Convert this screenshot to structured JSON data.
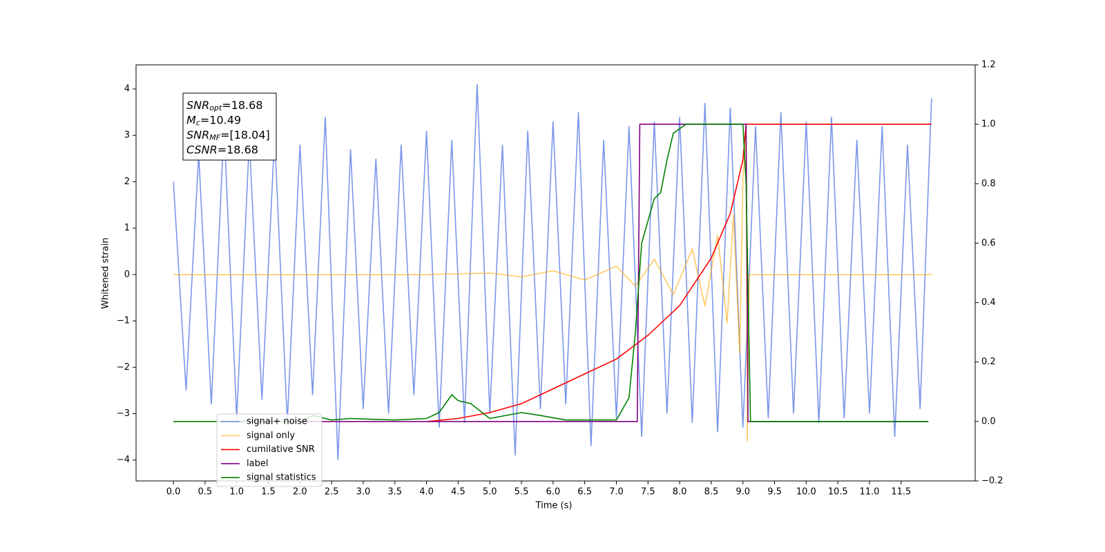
{
  "chart_data": {
    "type": "line",
    "xlabel": "Time (s)",
    "ylabel": "Whitened strain",
    "xlim": [
      -0.59,
      12.67
    ],
    "ylim": [
      -4.45,
      4.52
    ],
    "y2lim": [
      -0.2,
      1.2
    ],
    "xticks": [
      {
        "value": 0,
        "label": "0.0"
      },
      {
        "value": 0.5,
        "label": "0.5"
      },
      {
        "value": 1,
        "label": "1.0"
      },
      {
        "value": 1.5,
        "label": "1.5"
      },
      {
        "value": 2,
        "label": "2.0"
      },
      {
        "value": 2.5,
        "label": "2.5"
      },
      {
        "value": 3,
        "label": "3.0"
      },
      {
        "value": 3.5,
        "label": "3.5"
      },
      {
        "value": 4,
        "label": "4.0"
      },
      {
        "value": 4.5,
        "label": "4.5"
      },
      {
        "value": 5,
        "label": "5.0"
      },
      {
        "value": 5.5,
        "label": "5.5"
      },
      {
        "value": 6,
        "label": "6.0"
      },
      {
        "value": 6.5,
        "label": "6.5"
      },
      {
        "value": 7,
        "label": "7.0"
      },
      {
        "value": 7.5,
        "label": "7.5"
      },
      {
        "value": 8,
        "label": "8.0"
      },
      {
        "value": 8.5,
        "label": "8.5"
      },
      {
        "value": 9,
        "label": "9.0"
      },
      {
        "value": 9.5,
        "label": "9.5"
      },
      {
        "value": 10,
        "label": "10.0"
      },
      {
        "value": 10.5,
        "label": "10.5"
      },
      {
        "value": 11,
        "label": "11.0"
      },
      {
        "value": 11.5,
        "label": "11.5"
      }
    ],
    "yticks": [
      {
        "value": -4,
        "label": "−4"
      },
      {
        "value": -3,
        "label": "−3"
      },
      {
        "value": -2,
        "label": "−2"
      },
      {
        "value": -1,
        "label": "−1"
      },
      0,
      1,
      2,
      3,
      4
    ],
    "y2ticks": [
      {
        "value": -0.2,
        "label": "−0.2"
      },
      {
        "value": 0,
        "label": "0.0"
      },
      {
        "value": 0.2,
        "label": "0.2"
      },
      {
        "value": 0.4,
        "label": "0.4"
      },
      {
        "value": 0.6,
        "label": "0.6"
      },
      {
        "value": 0.8,
        "label": "0.8"
      },
      {
        "value": 1,
        "label": "1.0"
      },
      {
        "value": 1.2,
        "label": "1.2"
      }
    ],
    "annotation": [
      {
        "base": "SNR",
        "sub": "opt",
        "text": "=18.68"
      },
      {
        "base": "M",
        "sub": "c",
        "text": "=10.49"
      },
      {
        "base": "SNR",
        "sub": "MF",
        "text": "=[18.04]"
      },
      {
        "base": "CSNR",
        "sub": "",
        "text": "=18.68"
      }
    ],
    "series": [
      {
        "name": "signal+ noise",
        "color": "#4169e1",
        "alpha": 0.7,
        "x": [
          0,
          0.2,
          0.4,
          0.6,
          0.8,
          1,
          1.2,
          1.4,
          1.6,
          1.8,
          2,
          2.2,
          2.4,
          2.6,
          2.8,
          3,
          3.2,
          3.4,
          3.6,
          3.8,
          4,
          4.2,
          4.4,
          4.6,
          4.8,
          5,
          5.2,
          5.4,
          5.6,
          5.8,
          6,
          6.2,
          6.4,
          6.6,
          6.8,
          7,
          7.2,
          7.4,
          7.6,
          7.8,
          8,
          8.2,
          8.4,
          8.6,
          8.8,
          9,
          9.2,
          9.4,
          9.6,
          9.8,
          10,
          10.2,
          10.4,
          10.6,
          10.8,
          11,
          11.2,
          11.4,
          11.6,
          11.8,
          11.98
        ],
        "values": [
          2.0,
          -2.5,
          2.6,
          -2.8,
          3.2,
          -3.1,
          2.9,
          -2.7,
          3.0,
          -3.2,
          2.8,
          -2.6,
          3.4,
          -4.0,
          2.7,
          -2.9,
          2.5,
          -3.0,
          2.8,
          -2.6,
          3.1,
          -3.3,
          2.9,
          -3.2,
          4.1,
          -3.0,
          2.8,
          -3.9,
          3.1,
          -2.9,
          3.3,
          -2.8,
          3.5,
          -3.7,
          2.9,
          -3.1,
          3.2,
          -3.5,
          3.3,
          -3.0,
          3.4,
          -3.2,
          3.7,
          -3.4,
          3.6,
          -3.3,
          3.2,
          -3.1,
          3.5,
          -3.0,
          3.3,
          -3.2,
          3.4,
          -3.1,
          2.9,
          -3.0,
          3.2,
          -3.5,
          2.8,
          -2.9,
          3.8
        ]
      },
      {
        "name": "signal only",
        "color": "orange",
        "alpha": 0.6,
        "x": [
          0,
          4,
          5,
          5.5,
          6,
          6.5,
          7,
          7.3,
          7.6,
          7.9,
          8.2,
          8.4,
          8.6,
          8.75,
          8.85,
          8.95,
          9.0,
          9.05,
          9.07,
          9.1,
          11.98
        ],
        "values": [
          0,
          0,
          0.03,
          -0.05,
          0.08,
          -0.12,
          0.18,
          -0.25,
          0.33,
          -0.43,
          0.55,
          -0.68,
          0.85,
          -1.05,
          1.3,
          -1.7,
          2.1,
          3.0,
          -3.6,
          0,
          0
        ]
      },
      {
        "name": "cumilative SNR",
        "color": "#ff0000",
        "alpha": 1,
        "axis": "y2",
        "x": [
          4,
          4.5,
          5,
          5.5,
          6,
          6.5,
          7,
          7.5,
          8,
          8.5,
          8.8,
          9,
          9.05,
          11.98
        ],
        "values": [
          0,
          0.01,
          0.03,
          0.06,
          0.11,
          0.16,
          0.21,
          0.29,
          0.39,
          0.55,
          0.7,
          0.88,
          1,
          1
        ]
      },
      {
        "name": "label",
        "color": "#800080",
        "alpha": 1,
        "axis": "y2",
        "x": [
          0.7,
          7.33,
          7.37,
          9.05,
          9.08,
          11.93
        ],
        "values": [
          0,
          0,
          1,
          1,
          0,
          0
        ]
      },
      {
        "name": "signal statistics",
        "color": "#008000",
        "alpha": 1,
        "axis": "y2",
        "x": [
          0,
          2,
          2.2,
          2.5,
          2.8,
          3.5,
          4,
          4.2,
          4.4,
          4.5,
          4.7,
          5,
          5.5,
          5.8,
          6.2,
          7,
          7.2,
          7.3,
          7.4,
          7.6,
          7.7,
          7.8,
          7.9,
          8.1,
          9,
          9.05,
          9.12,
          11.93
        ],
        "values": [
          0,
          0,
          0.02,
          0.005,
          0.01,
          0.005,
          0.01,
          0.03,
          0.09,
          0.07,
          0.06,
          0.01,
          0.03,
          0.02,
          0.005,
          0.005,
          0.08,
          0.3,
          0.6,
          0.75,
          0.77,
          0.88,
          0.97,
          1,
          1,
          0.8,
          0,
          0
        ]
      }
    ]
  }
}
